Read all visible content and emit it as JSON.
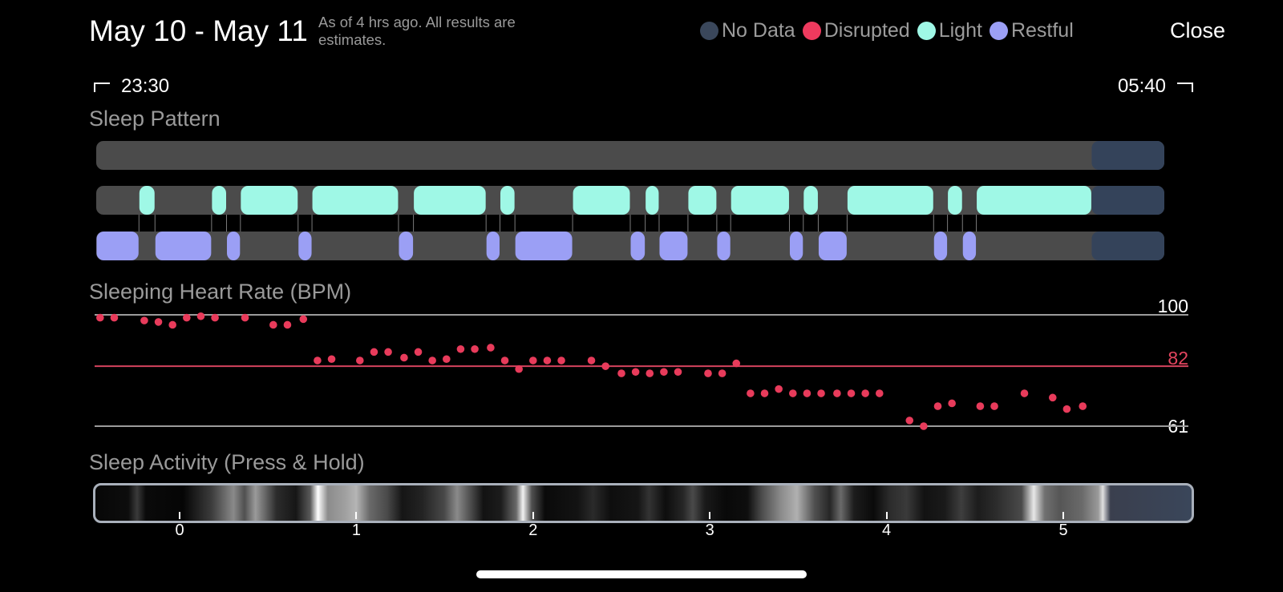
{
  "header": {
    "title": "May 10 - May 11",
    "subtitle": "As of 4 hrs ago. All results are estimates.",
    "close_label": "Close"
  },
  "legend": [
    {
      "label": "No Data",
      "color": "#3a475b"
    },
    {
      "label": "Disrupted",
      "color": "#ee3a5e"
    },
    {
      "label": "Light",
      "color": "#9ff8e6"
    },
    {
      "label": "Restful",
      "color": "#9b9ff5"
    }
  ],
  "time_range": {
    "start": "23:30",
    "end": "05:40"
  },
  "sleep_pattern": {
    "label": "Sleep Pattern",
    "colors": {
      "track": "#4b4b4b",
      "no_data": "#34435a",
      "light": "#9ff8e6",
      "restful": "#9b9ff5"
    },
    "no_data_from_fraction": 0.932,
    "light_segments": [
      [
        0.04,
        0.055
      ],
      [
        0.108,
        0.122
      ],
      [
        0.135,
        0.189
      ],
      [
        0.202,
        0.283
      ],
      [
        0.297,
        0.365
      ],
      [
        0.378,
        0.392
      ],
      [
        0.446,
        0.5
      ],
      [
        0.514,
        0.527
      ],
      [
        0.554,
        0.581
      ],
      [
        0.594,
        0.649
      ],
      [
        0.662,
        0.676
      ],
      [
        0.703,
        0.784
      ],
      [
        0.797,
        0.811
      ],
      [
        0.824,
        0.932
      ]
    ],
    "restful_segments": [
      [
        0,
        0.04
      ],
      [
        0.055,
        0.108
      ],
      [
        0.122,
        0.135
      ],
      [
        0.189,
        0.202
      ],
      [
        0.283,
        0.297
      ],
      [
        0.365,
        0.378
      ],
      [
        0.392,
        0.446
      ],
      [
        0.5,
        0.514
      ],
      [
        0.527,
        0.554
      ],
      [
        0.581,
        0.594
      ],
      [
        0.649,
        0.662
      ],
      [
        0.676,
        0.703
      ],
      [
        0.784,
        0.797
      ],
      [
        0.811,
        0.824
      ]
    ]
  },
  "heart_rate": {
    "label": "Sleeping Heart Rate (BPM)",
    "axis": {
      "max": "100",
      "avg": "82",
      "min": "61"
    },
    "colors": {
      "dot": "#e83b5b",
      "avg_line": "#d4435e",
      "ref_line": "#9b9b9b"
    },
    "x_unit": "hours",
    "points": [
      [
        -0.45,
        99
      ],
      [
        -0.37,
        99
      ],
      [
        -0.2,
        98
      ],
      [
        -0.12,
        97.5
      ],
      [
        -0.04,
        96.5
      ],
      [
        0.04,
        99
      ],
      [
        0.12,
        99.5
      ],
      [
        0.2,
        99
      ],
      [
        0.37,
        99
      ],
      [
        0.53,
        96.5
      ],
      [
        0.61,
        96.5
      ],
      [
        0.7,
        98.5
      ],
      [
        0.78,
        84
      ],
      [
        0.86,
        84.5
      ],
      [
        1.02,
        84
      ],
      [
        1.1,
        87
      ],
      [
        1.18,
        87
      ],
      [
        1.27,
        85
      ],
      [
        1.35,
        87
      ],
      [
        1.43,
        84
      ],
      [
        1.51,
        84.5
      ],
      [
        1.59,
        88
      ],
      [
        1.67,
        88
      ],
      [
        1.76,
        88.5
      ],
      [
        1.84,
        84
      ],
      [
        1.92,
        81
      ],
      [
        2,
        84
      ],
      [
        2.08,
        84
      ],
      [
        2.16,
        84
      ],
      [
        2.33,
        84
      ],
      [
        2.41,
        82
      ],
      [
        2.5,
        79.5
      ],
      [
        2.58,
        80
      ],
      [
        2.66,
        79.5
      ],
      [
        2.74,
        80
      ],
      [
        2.82,
        80
      ],
      [
        2.99,
        79.5
      ],
      [
        3.07,
        79.5
      ],
      [
        3.15,
        83
      ],
      [
        3.23,
        72.5
      ],
      [
        3.31,
        72.5
      ],
      [
        3.39,
        74
      ],
      [
        3.47,
        72.5
      ],
      [
        3.55,
        72.5
      ],
      [
        3.63,
        72.5
      ],
      [
        3.72,
        72.5
      ],
      [
        3.8,
        72.5
      ],
      [
        3.88,
        72.5
      ],
      [
        3.96,
        72.5
      ],
      [
        4.13,
        63
      ],
      [
        4.21,
        61
      ],
      [
        4.29,
        68
      ],
      [
        4.37,
        69
      ],
      [
        4.53,
        68
      ],
      [
        4.61,
        68
      ],
      [
        4.78,
        72.5
      ],
      [
        4.94,
        71
      ],
      [
        5.02,
        67
      ],
      [
        5.11,
        68
      ]
    ]
  },
  "sleep_activity": {
    "label": "Sleep Activity (Press & Hold)",
    "ticks": [
      "0",
      "1",
      "2",
      "3",
      "4",
      "5"
    ]
  }
}
